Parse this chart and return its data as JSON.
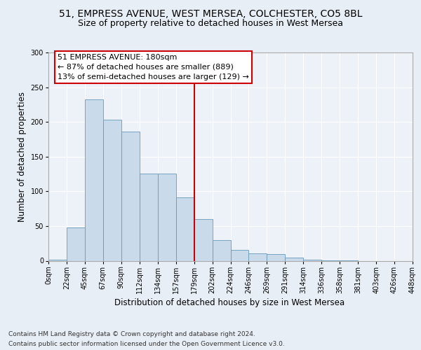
{
  "title_line1": "51, EMPRESS AVENUE, WEST MERSEA, COLCHESTER, CO5 8BL",
  "title_line2": "Size of property relative to detached houses in West Mersea",
  "xlabel": "Distribution of detached houses by size in West Mersea",
  "ylabel": "Number of detached properties",
  "footer_line1": "Contains HM Land Registry data © Crown copyright and database right 2024.",
  "footer_line2": "Contains public sector information licensed under the Open Government Licence v3.0.",
  "bin_labels": [
    "0sqm",
    "22sqm",
    "45sqm",
    "67sqm",
    "90sqm",
    "112sqm",
    "134sqm",
    "157sqm",
    "179sqm",
    "202sqm",
    "224sqm",
    "246sqm",
    "269sqm",
    "291sqm",
    "314sqm",
    "336sqm",
    "358sqm",
    "381sqm",
    "403sqm",
    "426sqm",
    "448sqm"
  ],
  "bar_heights": [
    2,
    48,
    232,
    203,
    186,
    126,
    126,
    91,
    60,
    30,
    16,
    11,
    10,
    5,
    2,
    1,
    1,
    0,
    0,
    0
  ],
  "bar_color": "#c9daea",
  "bar_edge_color": "#6899b8",
  "vline_x": 8,
  "vline_color": "#cc0000",
  "annotation_text": "51 EMPRESS AVENUE: 180sqm\n← 87% of detached houses are smaller (889)\n13% of semi-detached houses are larger (129) →",
  "annotation_box_color": "#cc0000",
  "ylim": [
    0,
    300
  ],
  "yticks": [
    0,
    50,
    100,
    150,
    200,
    250,
    300
  ],
  "bg_color": "#e8eef5",
  "plot_bg_color": "#edf2f8",
  "grid_color": "#ffffff",
  "title_fontsize": 10,
  "subtitle_fontsize": 9,
  "axis_label_fontsize": 8.5,
  "tick_fontsize": 7,
  "annotation_fontsize": 8,
  "footer_fontsize": 6.5
}
